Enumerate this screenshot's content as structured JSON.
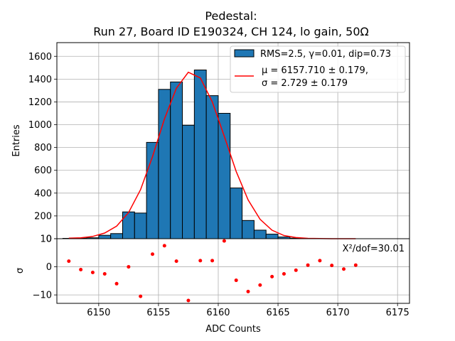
{
  "title": {
    "line1": "Pedestal:",
    "line2": "Run 27, Board ID E190324, CH 124, lo gain, 50Ω"
  },
  "chart_data": [
    {
      "type": "bar",
      "panel": "top",
      "ylabel": "Entries",
      "ylim": [
        0,
        1720
      ],
      "xlim": [
        6146.5,
        6176
      ],
      "yticks": [
        0,
        200,
        400,
        600,
        800,
        1000,
        1200,
        1400,
        1600
      ],
      "ytick_labels": [
        "0",
        "200",
        "400",
        "600",
        "800",
        "1000",
        "1200",
        "1400",
        "1600"
      ],
      "grid": true,
      "legend_position": "top-right",
      "histogram": {
        "name": "RMS=2.5, γ=0.01, dip=0.73",
        "color": "#1f77b4",
        "bin_edges": [
          6147,
          6148,
          6149,
          6150,
          6151,
          6152,
          6153,
          6154,
          6155,
          6156,
          6157,
          6158,
          6159,
          6160,
          6161,
          6162,
          6163,
          6164,
          6165,
          6166,
          6167,
          6168,
          6169,
          6170,
          6171,
          6172,
          6173,
          6174,
          6175
        ],
        "values": [
          3,
          5,
          8,
          30,
          45,
          235,
          225,
          845,
          1310,
          1375,
          995,
          1480,
          1255,
          1100,
          445,
          160,
          75,
          40,
          15,
          5,
          3,
          0,
          0,
          0,
          0,
          0,
          0,
          0
        ]
      },
      "fit": {
        "name_mu": "μ = 6157.710 ± 0.179,",
        "name_sigma": "σ = 2.729 ± 0.179",
        "color": "#ff0000",
        "x": [
          6147.5,
          6148.5,
          6149.5,
          6150.5,
          6151.5,
          6152.5,
          6153.5,
          6154.5,
          6155.5,
          6156.5,
          6157.5,
          6158.5,
          6159.5,
          6160.5,
          6161.5,
          6162.5,
          6163.5,
          6164.5,
          6165.5,
          6166.5,
          6167.5,
          6168.5,
          6169.5,
          6170.5,
          6171.5
        ],
        "y": [
          5,
          8,
          20,
          50,
          110,
          230,
          430,
          720,
          1050,
          1320,
          1460,
          1410,
          1200,
          900,
          590,
          340,
          170,
          75,
          28,
          10,
          3,
          1,
          0,
          0,
          0
        ]
      }
    },
    {
      "type": "scatter",
      "panel": "bottom",
      "xlabel": "ADC Counts",
      "ylabel": "σ",
      "ylim": [
        -13,
        10
      ],
      "xlim": [
        6146.5,
        6176
      ],
      "yticks": [
        -10,
        0,
        10
      ],
      "ytick_labels": [
        "−10",
        "0",
        "10"
      ],
      "xticks": [
        6150,
        6155,
        6160,
        6165,
        6170,
        6175
      ],
      "xtick_labels": [
        "6150",
        "6155",
        "6160",
        "6165",
        "6170",
        "6175"
      ],
      "grid": true,
      "color": "#ff0000",
      "annotation": "X²/dof=30.01",
      "x": [
        6147.5,
        6148.5,
        6149.5,
        6150.5,
        6151.5,
        6152.5,
        6153.5,
        6154.5,
        6155.5,
        6156.5,
        6157.5,
        6158.5,
        6159.5,
        6160.5,
        6161.5,
        6162.5,
        6163.5,
        6164.5,
        6165.5,
        6166.5,
        6167.5,
        6168.5,
        6169.5,
        6170.5,
        6171.5
      ],
      "y": [
        2,
        -1,
        -2,
        -2.5,
        -6,
        0,
        -10.5,
        4.5,
        7.5,
        2,
        -12,
        2.2,
        2.2,
        9.2,
        -4.8,
        -8.8,
        -6.5,
        -3.5,
        -2.5,
        -1.2,
        0.6,
        2.2,
        0.5,
        -0.8,
        0.6
      ]
    }
  ]
}
